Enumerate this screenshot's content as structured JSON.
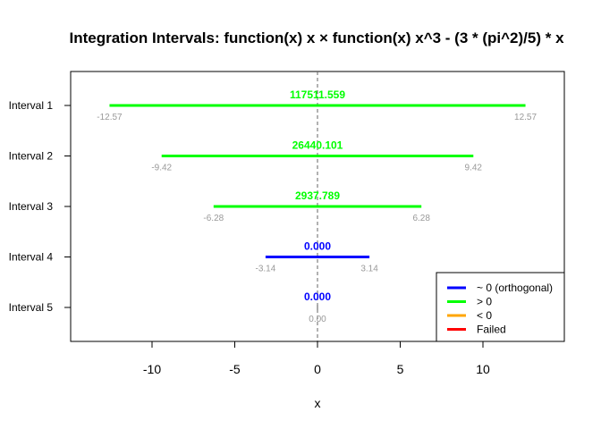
{
  "chart_data": {
    "type": "interval",
    "title": "Integration Intervals: function(x) x × function(x) x^3 - (3 * (pi^2)/5) * x",
    "xlabel": "x",
    "ylabel": "",
    "xlim": [
      -15,
      15
    ],
    "xticks": [
      -10,
      -5,
      0,
      5,
      10
    ],
    "reference_line_x": 0,
    "categories": [
      "Interval 1",
      "Interval 2",
      "Interval 3",
      "Interval 4",
      "Interval 5"
    ],
    "intervals": [
      {
        "label": "Interval 1",
        "lower": -12.57,
        "upper": 12.57,
        "lower_text": "-12.57",
        "upper_text": "12.57",
        "value_text": "117511.559",
        "status": "> 0"
      },
      {
        "label": "Interval 2",
        "lower": -9.42,
        "upper": 9.42,
        "lower_text": "-9.42",
        "upper_text": "9.42",
        "value_text": "26440.101",
        "status": "> 0"
      },
      {
        "label": "Interval 3",
        "lower": -6.28,
        "upper": 6.28,
        "lower_text": "-6.28",
        "upper_text": "6.28",
        "value_text": "2937.789",
        "status": "> 0"
      },
      {
        "label": "Interval 4",
        "lower": -3.14,
        "upper": 3.14,
        "lower_text": "-3.14",
        "upper_text": "3.14",
        "value_text": "0.000",
        "status": "~ 0 (orthogonal)"
      },
      {
        "label": "Interval 5",
        "lower": 0,
        "upper": 0,
        "lower_text": "",
        "upper_text": "",
        "mid_text": "0.00",
        "value_text": "0.000",
        "status": "~ 0 (orthogonal)"
      }
    ],
    "legend": {
      "position": "bottom-right",
      "entries": [
        {
          "label": "~ 0 (orthogonal)",
          "color": "#0000ff"
        },
        {
          "label": "> 0",
          "color": "#00ff00"
        },
        {
          "label": "< 0",
          "color": "#ffa500"
        },
        {
          "label": "Failed",
          "color": "#ff0000"
        }
      ]
    },
    "colors": {
      "axis": "#000000",
      "endpoint_label": "#999999",
      "reference_line": "#666666"
    }
  }
}
